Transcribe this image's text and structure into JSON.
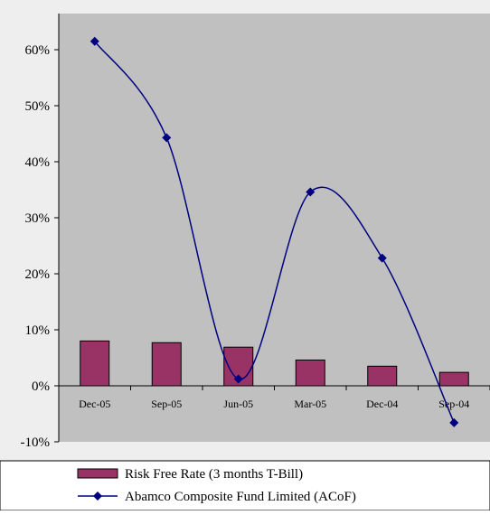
{
  "chart_data": {
    "type": "bar+line",
    "categories": [
      "Dec-05",
      "Sep-05",
      "Jun-05",
      "Mar-05",
      "Dec-04",
      "Sep-04"
    ],
    "series": [
      {
        "name": "Risk Free Rate (3 months T-Bill)",
        "kind": "bar",
        "values": [
          0.08,
          0.077,
          0.069,
          0.046,
          0.035,
          0.024
        ]
      },
      {
        "name": "Abamco Composite Fund Limited (ACoF)",
        "kind": "line",
        "values": [
          0.615,
          0.443,
          0.012,
          0.346,
          0.228,
          -0.066
        ]
      }
    ],
    "yticks": [
      "60%",
      "50%",
      "40%",
      "30%",
      "20%",
      "10%",
      "0%",
      "-10%"
    ],
    "ylim": [
      -0.1,
      0.65
    ],
    "grid": false,
    "legend_position": "bottom",
    "colors": {
      "bar": "#993366",
      "line": "#000080",
      "plot_area": "#c0c0c0",
      "chart_area": "#eeeeee"
    }
  }
}
